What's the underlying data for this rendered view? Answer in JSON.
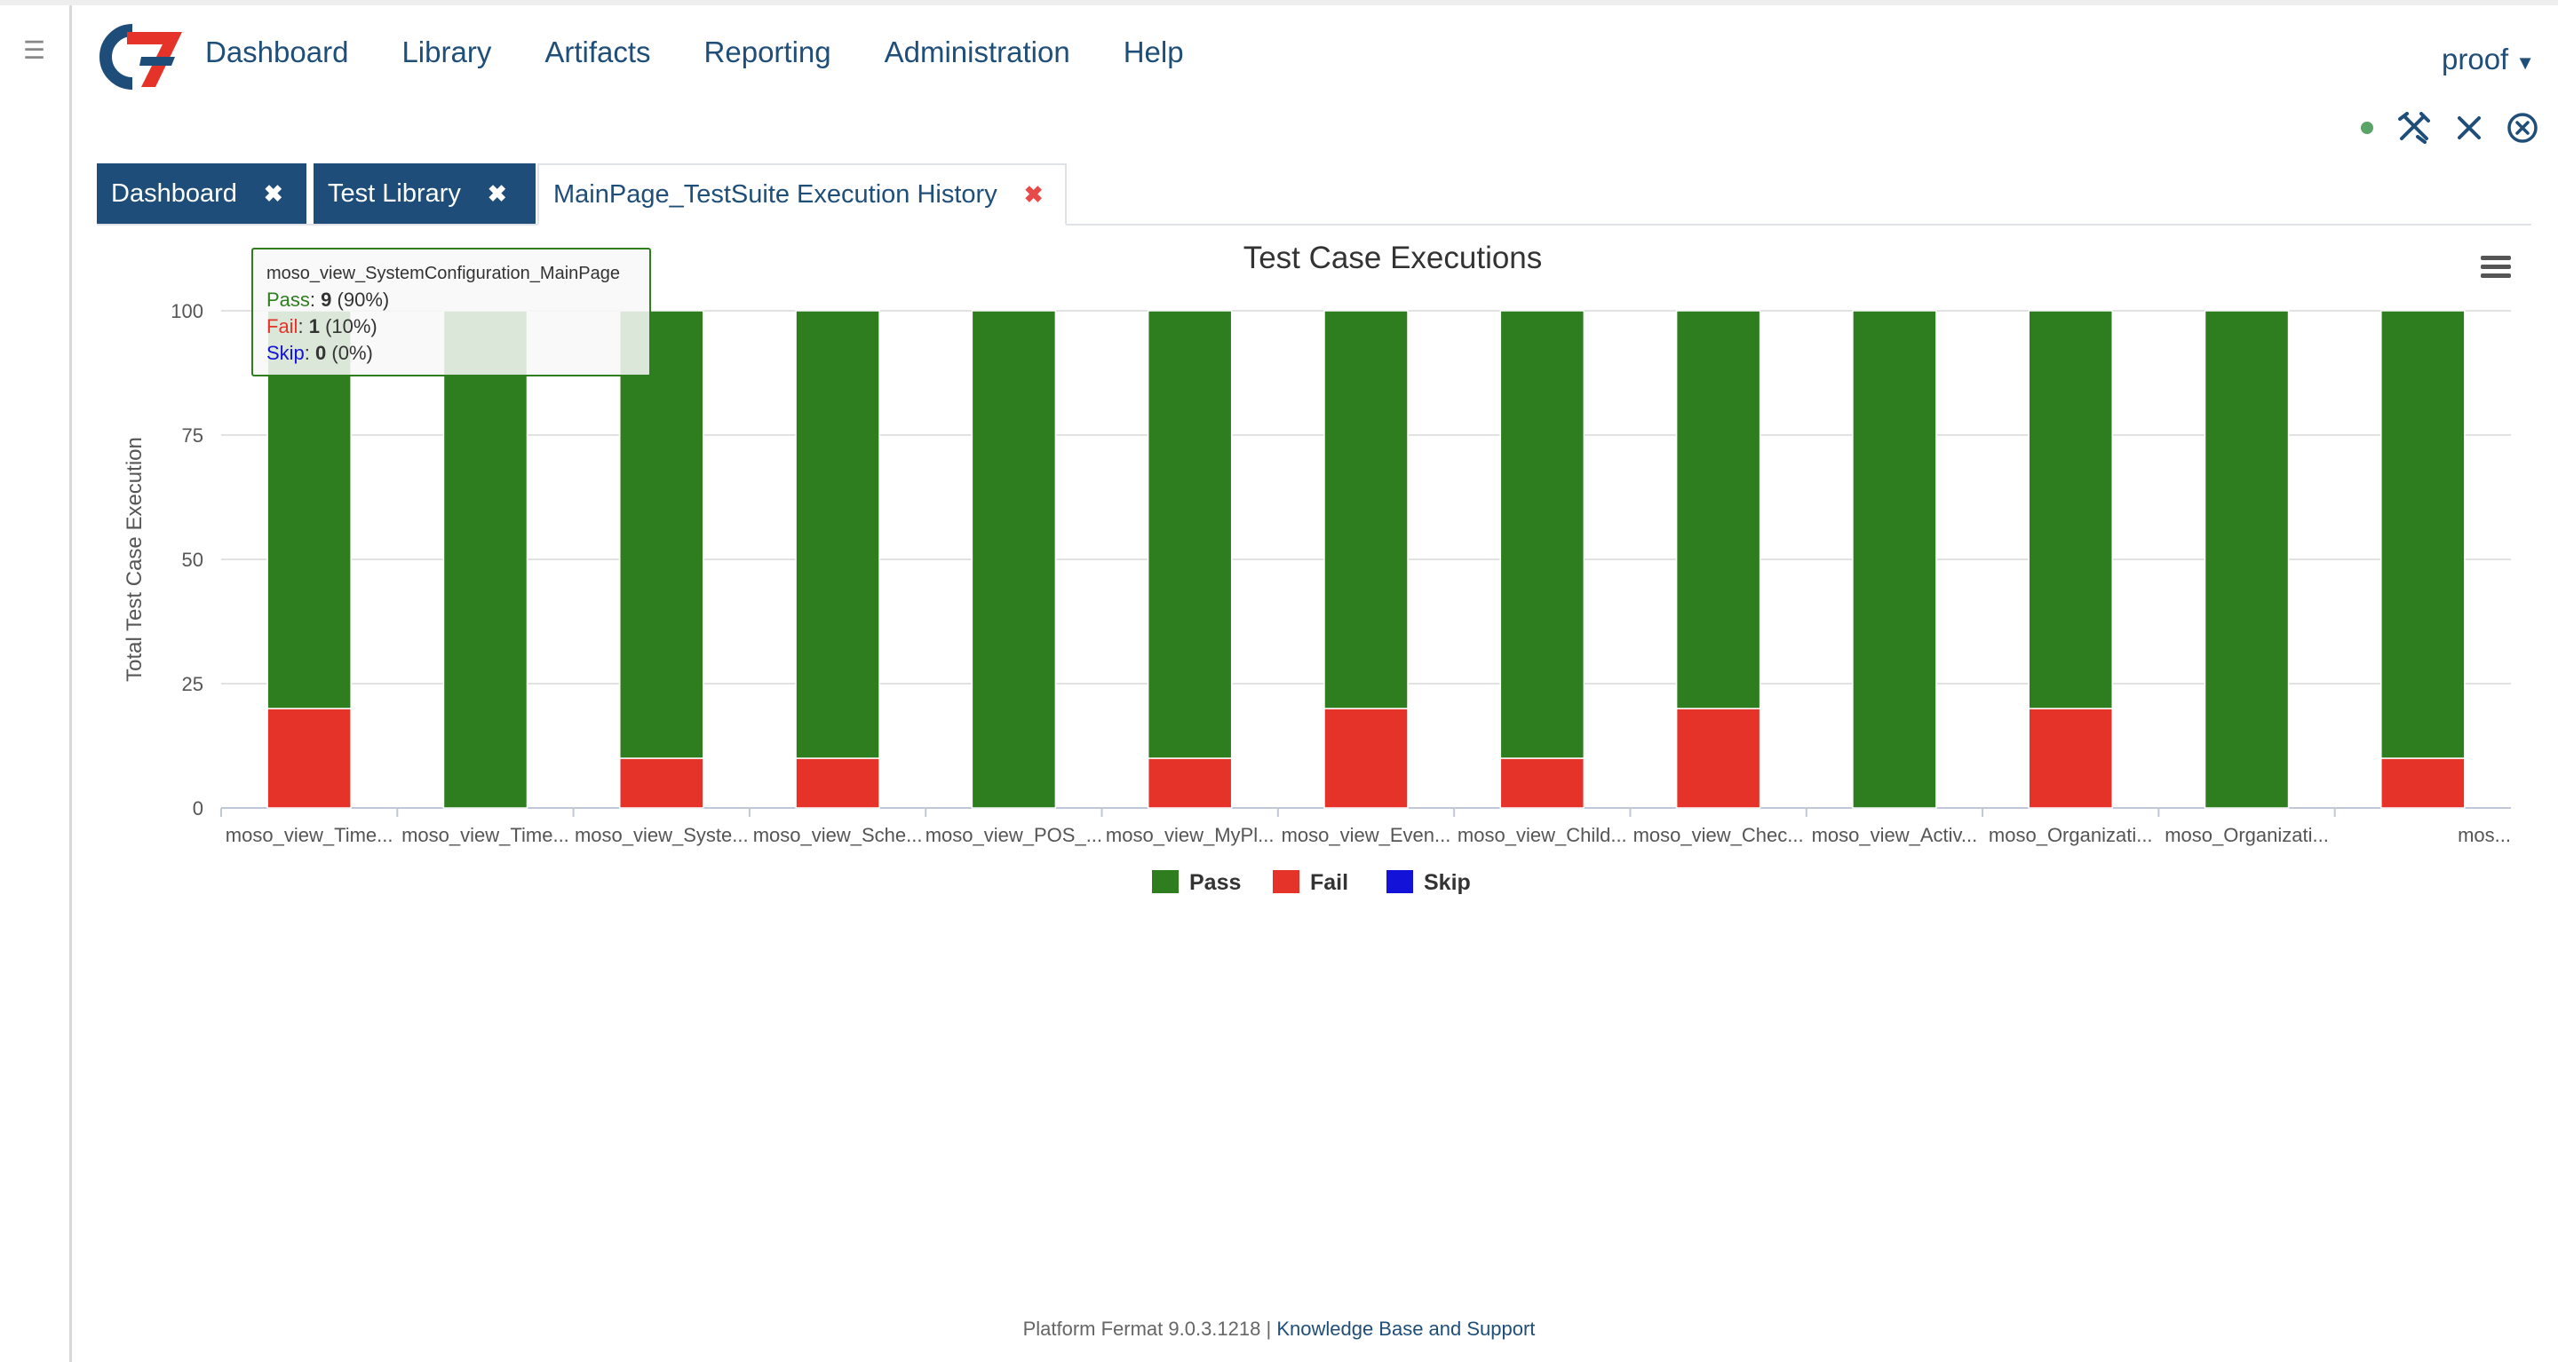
{
  "app": {
    "nav": [
      "Dashboard",
      "Library",
      "Artifacts",
      "Reporting",
      "Administration",
      "Help"
    ],
    "user": "proof"
  },
  "tabs": [
    {
      "label": "Dashboard",
      "state": "dark"
    },
    {
      "label": "Test Library",
      "state": "dark"
    },
    {
      "label": "MainPage_TestSuite Execution History",
      "state": "active"
    }
  ],
  "icons": {
    "status": "status-dot-icon",
    "tools": "tools-icon",
    "close": "close-icon",
    "close_circle": "close-circle-icon",
    "menu": "hamburger-menu-icon"
  },
  "colors": {
    "pass": "#2e7d1f",
    "fail": "#e53329",
    "skip": "#1212d8",
    "brand": "#1d4d78"
  },
  "tooltip": {
    "title": "moso_view_SystemConfiguration_MainPage",
    "pass_label": "Pass",
    "pass_value": "9",
    "pass_pct": "(90%)",
    "fail_label": "Fail",
    "fail_value": "1",
    "fail_pct": "(10%)",
    "skip_label": "Skip",
    "skip_value": "0",
    "skip_pct": "(0%)"
  },
  "chart_data": {
    "type": "bar",
    "stacked": true,
    "title": "Test Case Executions",
    "ylabel": "Total Test Case Execution",
    "xlabel": "",
    "ylim": [
      0,
      100
    ],
    "yticks": [
      0,
      25,
      50,
      75,
      100
    ],
    "legend_position": "bottom-center",
    "categories": [
      "moso_view_Time...",
      "moso_view_Time...",
      "moso_view_Syste...",
      "moso_view_Sche...",
      "moso_view_POS_...",
      "moso_view_MyPl...",
      "moso_view_Even...",
      "moso_view_Child...",
      "moso_view_Chec...",
      "moso_view_Activ...",
      "moso_Organizati...",
      "moso_Organizati...",
      "mos..."
    ],
    "series": [
      {
        "name": "Pass",
        "values": [
          80,
          100,
          90,
          90,
          100,
          90,
          80,
          90,
          80,
          100,
          80,
          100,
          90
        ]
      },
      {
        "name": "Fail",
        "values": [
          20,
          0,
          10,
          10,
          0,
          10,
          20,
          10,
          20,
          0,
          20,
          0,
          10
        ]
      },
      {
        "name": "Skip",
        "values": [
          0,
          0,
          0,
          0,
          0,
          0,
          0,
          0,
          0,
          0,
          0,
          0,
          0
        ]
      }
    ]
  },
  "footer": {
    "version": "Platform Fermat 9.0.3.1218 |",
    "link": "Knowledge Base and Support"
  }
}
